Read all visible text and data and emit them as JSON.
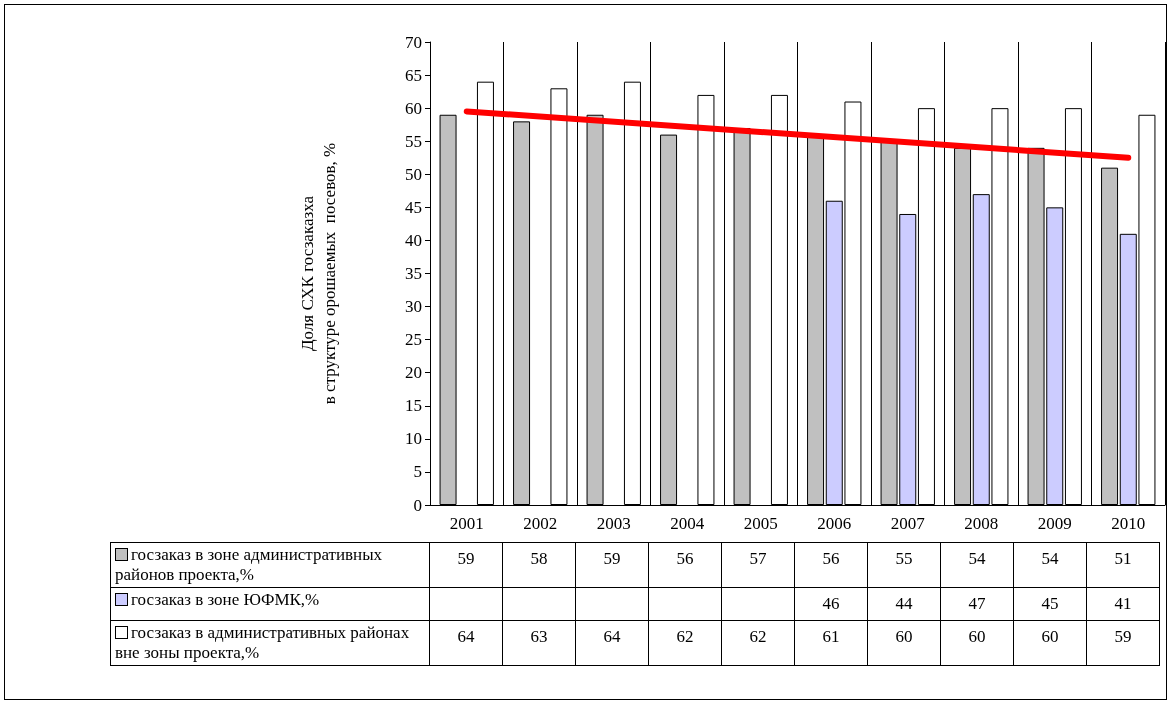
{
  "chart_data": {
    "type": "bar",
    "ylabel": "Доля СХК госзаказха\nв структуре орошаемых  посевов, %",
    "categories": [
      "2001",
      "2002",
      "2003",
      "2004",
      "2005",
      "2006",
      "2007",
      "2008",
      "2009",
      "2010"
    ],
    "series": [
      {
        "name": "госзаказ в зоне административных районов проекта,%",
        "color": "#c0c0c0",
        "values": [
          59,
          58,
          59,
          56,
          57,
          56,
          55,
          54,
          54,
          51
        ],
        "value_labels": [
          "59",
          "58",
          "59",
          "56",
          "57",
          "56",
          "55",
          "54",
          "54",
          "51"
        ]
      },
      {
        "name": "госзаказ в зоне ЮФМК,%",
        "color": "#ccccff",
        "values": [
          null,
          null,
          null,
          null,
          null,
          46,
          44,
          47,
          45,
          41
        ],
        "value_labels": [
          null,
          null,
          null,
          null,
          null,
          "46",
          "44",
          "47",
          "45",
          "41"
        ]
      },
      {
        "name": "госзаказ в административных районах вне зоны проекта,%",
        "color": "#ffffff",
        "values": [
          64,
          63,
          64,
          62,
          62,
          61,
          60,
          60,
          60,
          59
        ],
        "value_labels": [
          "64",
          "63",
          "64",
          "62",
          "62",
          "61",
          "60",
          "60",
          "60",
          "59"
        ]
      },
      {
        "type": "line",
        "values": [
          59.5,
          null,
          null,
          null,
          null,
          null,
          null,
          null,
          null,
          52.5
        ],
        "color": "#ff0000",
        "marker": "none"
      }
    ],
    "ylim": [
      0,
      70
    ],
    "yticks": [
      0,
      5,
      10,
      15,
      20,
      25,
      30,
      35,
      40,
      45,
      50,
      55,
      60,
      65,
      70
    ],
    "grid": "x",
    "legend": "bottom"
  }
}
